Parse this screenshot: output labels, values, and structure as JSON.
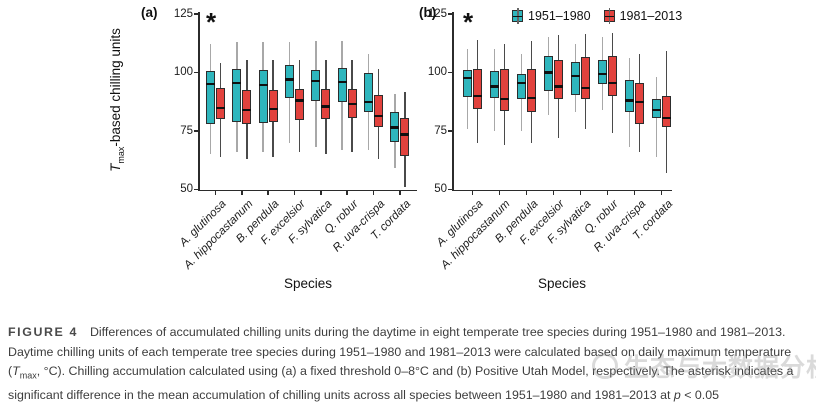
{
  "figure": {
    "panel_a_label": "(a)",
    "panel_b_label": "(b)",
    "significance_marker": "*",
    "ylabel": {
      "t": "T",
      "sub": "max",
      "rest": "-based chilling units"
    },
    "colors": {
      "period_1951_1980": "#2eb6bd",
      "period_1981_2013": "#e2423d"
    }
  },
  "chart_data": [
    {
      "type": "boxplot",
      "panel": "a",
      "xlabel": "Species",
      "ylabel": "Tmax-based chilling units",
      "ylim": [
        50,
        125
      ],
      "yticks": [
        125,
        100,
        75,
        50
      ],
      "grid": false,
      "significant_asterisk": true,
      "categories": [
        "A. glutinosa",
        "A. hippocastanum",
        "B. pendula",
        "F. excelsior",
        "F. sylvatica",
        "Q. robur",
        "R. uva-crispa",
        "T. cordata"
      ],
      "series": [
        {
          "name": "1951–1980",
          "color": "#2eb6bd",
          "whisker_color": "#a8a8a8",
          "boxes": [
            [
              65,
              78,
              95,
              100.5,
              112
            ],
            [
              66,
              79,
              95.5,
              101.5,
              113
            ],
            [
              66,
              78.5,
              94.5,
              101,
              113
            ],
            [
              70,
              89,
              97,
              103,
              113
            ],
            [
              68,
              88,
              96.5,
              101,
              113.5
            ],
            [
              67,
              87.5,
              96,
              102,
              113.5
            ],
            [
              67,
              83,
              87.5,
              100,
              108
            ],
            [
              59,
              70.5,
              76.5,
              83,
              91
            ]
          ]
        },
        {
          "name": "1981–2013",
          "color": "#e2423d",
          "whisker_color": "#4a4a4a",
          "boxes": [
            [
              64,
              80,
              85,
              93.5,
              104
            ],
            [
              63,
              78,
              84,
              92.5,
              105.5
            ],
            [
              64,
              79,
              84.5,
              92.5,
              105.5
            ],
            [
              66,
              79.5,
              88,
              93,
              105.5
            ],
            [
              65,
              80,
              85.5,
              93,
              105.5
            ],
            [
              66,
              80.5,
              86.5,
              93,
              105.5
            ],
            [
              63,
              76.5,
              81.5,
              90.5,
              101.5
            ],
            [
              51,
              64.5,
              73.5,
              80.5,
              91.5
            ]
          ]
        }
      ]
    },
    {
      "type": "boxplot",
      "panel": "b",
      "xlabel": "Species",
      "ylim": [
        50,
        125
      ],
      "yticks": [
        125,
        100,
        75,
        50
      ],
      "grid": false,
      "significant_asterisk": true,
      "legend_position": "top",
      "categories": [
        "A. glutinosa",
        "A. hippocastanum",
        "B. pendula",
        "F. excelsior",
        "F. sylvatica",
        "Q. robur",
        "R. uva-crispa",
        "T. cordata"
      ],
      "series": [
        {
          "name": "1951–1980",
          "color": "#2eb6bd",
          "whisker_color": "#a8a8a8",
          "boxes": [
            [
              76,
              89.5,
              97.5,
              101,
              110
            ],
            [
              75,
              89,
              94,
              100.5,
              110
            ],
            [
              75,
              88.5,
              95.5,
              99.5,
              108
            ],
            [
              82,
              92,
              100,
              107,
              115
            ],
            [
              83,
              90.5,
              98.5,
              104.5,
              112
            ],
            [
              84,
              95,
              99.5,
              105.5,
              115
            ],
            [
              68,
              83,
              88,
              97,
              106
            ],
            [
              64,
              80.5,
              84,
              88.5,
              98
            ]
          ]
        },
        {
          "name": "1981–2013",
          "color": "#e2423d",
          "whisker_color": "#4a4a4a",
          "boxes": [
            [
              70,
              84.5,
              90,
              101.5,
              114
            ],
            [
              69,
              83.5,
              88.5,
              101.5,
              112
            ],
            [
              70,
              83,
              89,
              101.5,
              113.5
            ],
            [
              72,
              88.5,
              94,
              105.5,
              116
            ],
            [
              76,
              88.5,
              93.5,
              106.5,
              116.5
            ],
            [
              74,
              90,
              95.5,
              107,
              117
            ],
            [
              66,
              78,
              87.5,
              95.5,
              108
            ],
            [
              57,
              76.5,
              80.5,
              90,
              109
            ]
          ]
        }
      ]
    }
  ],
  "caption": {
    "label": "FIGURE 4",
    "text_1": "Differences of accumulated chilling units during the daytime in eight temperate tree species during 1951–1980 and 1981–2013. Daytime chilling units of each temperate tree species during 1951–1980 and 1981–2013 were calculated based on daily maximum temperature (",
    "tmax_symbol": "T",
    "tmax_sub": "max",
    "text_2": ", °C). Chilling accumulation calculated using (a) a fixed threshold 0–8°C and (b) Positive Utah Model, respectively. The asterisk indicates a significant difference in the mean accumulation of chilling units across all species between 1951–1980 and 1981–2013 at ",
    "p_symbol": "p",
    "p_value": " < 0.05"
  },
  "watermark": {
    "text": "生态与大数据分析"
  }
}
